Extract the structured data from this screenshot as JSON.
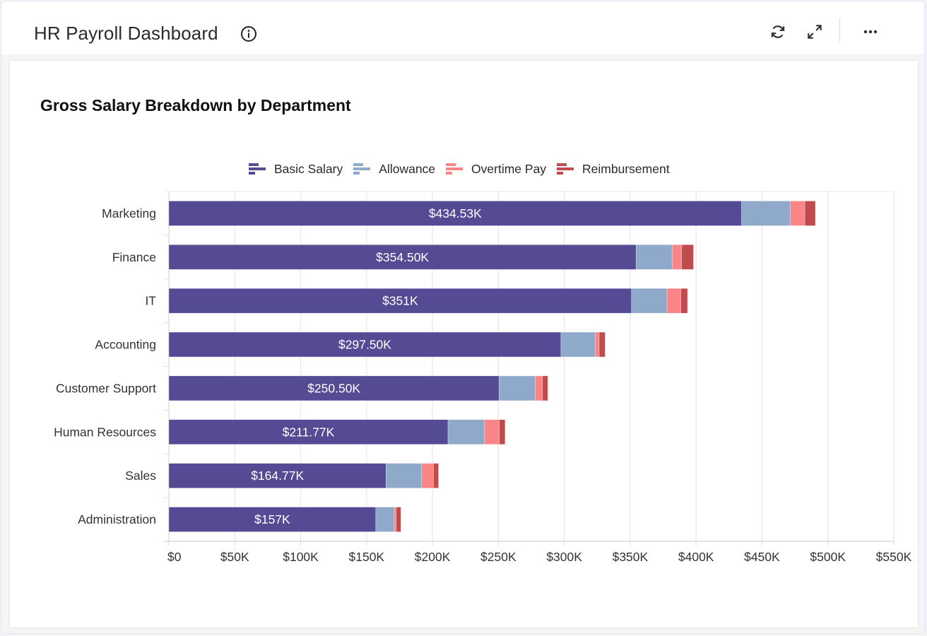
{
  "header": {
    "title": "HR Payroll Dashboard",
    "icons": [
      "info-icon",
      "refresh-icon",
      "expand-icon",
      "more-icon"
    ]
  },
  "chart_data": {
    "type": "bar",
    "orientation": "horizontal",
    "stacked": true,
    "title": "Gross Salary Breakdown by Department",
    "xlabel": "",
    "ylabel": "",
    "xlim": [
      0,
      550000
    ],
    "x_ticks": [
      "$0",
      "$50K",
      "$100K",
      "$150K",
      "$200K",
      "$250K",
      "$300K",
      "$350K",
      "$400K",
      "$450K",
      "$500K",
      "$550K"
    ],
    "x_tick_values": [
      0,
      50000,
      100000,
      150000,
      200000,
      250000,
      300000,
      350000,
      400000,
      450000,
      500000,
      550000
    ],
    "grid": true,
    "legend_position": "top-center",
    "categories": [
      "Marketing",
      "Finance",
      "IT",
      "Accounting",
      "Customer Support",
      "Human Resources",
      "Sales",
      "Administration"
    ],
    "series": [
      {
        "name": "Basic Salary",
        "color": "#554a94",
        "values": [
          434530,
          354500,
          351000,
          297500,
          250500,
          211770,
          164770,
          157000
        ],
        "labels": [
          "$434.53K",
          "$354.50K",
          "$351K",
          "$297.50K",
          "$250.50K",
          "$211.77K",
          "$164.77K",
          "$157K"
        ]
      },
      {
        "name": "Allowance",
        "color": "#8ea9c9",
        "values": [
          37000,
          27500,
          27000,
          26000,
          27500,
          27500,
          27000,
          14000
        ]
      },
      {
        "name": "Overtime Pay",
        "color": "#fb8586",
        "values": [
          11000,
          7000,
          10500,
          3000,
          5500,
          11500,
          9000,
          1500
        ]
      },
      {
        "name": "Reimbursement",
        "color": "#bf4b4d",
        "values": [
          8000,
          9000,
          5000,
          4500,
          4000,
          4300,
          3800,
          3500
        ]
      }
    ]
  }
}
